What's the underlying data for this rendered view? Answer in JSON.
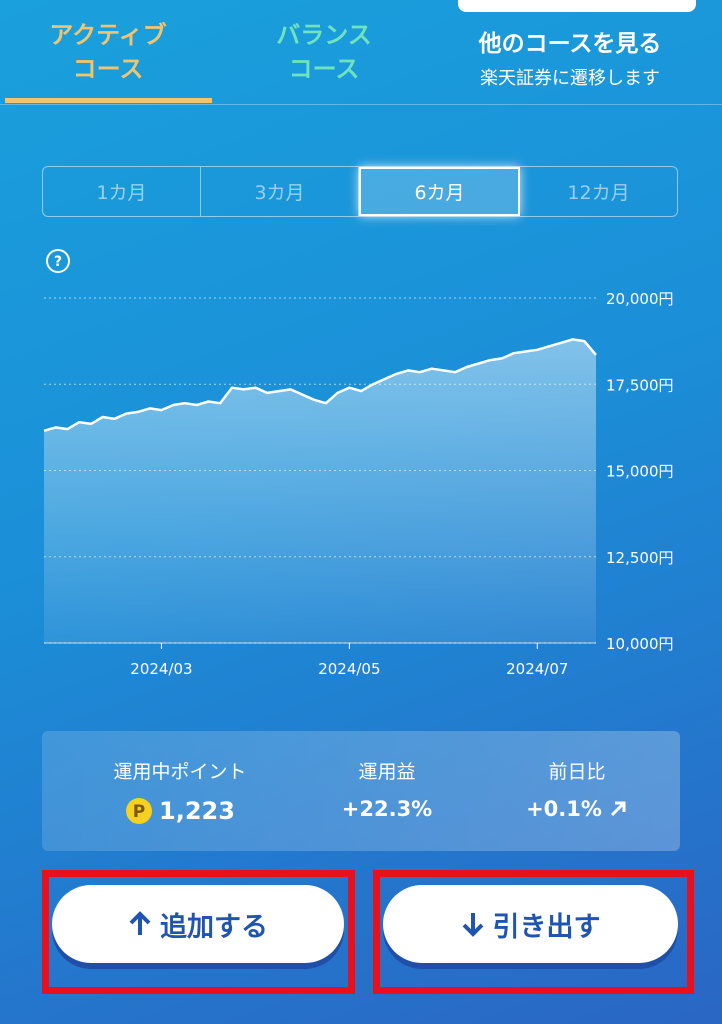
{
  "tabs": [
    {
      "lines": [
        "アクティブ",
        "コース"
      ]
    },
    {
      "lines": [
        "バランス",
        "コース"
      ]
    },
    {
      "title": "他のコースを見る",
      "subtitle": "楽天証券に遷移します"
    }
  ],
  "periods": {
    "options": [
      "1カ月",
      "3カ月",
      "6カ月",
      "12カ月"
    ],
    "selected": 2
  },
  "chart_data": {
    "type": "area",
    "color": "#ffffff",
    "grid": true,
    "categories": [
      null,
      null,
      null,
      null,
      null,
      null,
      null,
      null,
      null,
      null,
      "2024/03",
      null,
      null,
      null,
      null,
      null,
      null,
      null,
      null,
      null,
      null,
      null,
      null,
      null,
      null,
      null,
      "2024/05",
      null,
      null,
      null,
      null,
      null,
      null,
      null,
      null,
      null,
      null,
      null,
      null,
      null,
      null,
      null,
      "2024/07",
      null,
      null,
      null,
      null,
      null
    ],
    "values": [
      16150,
      16250,
      16200,
      16400,
      16350,
      16550,
      16500,
      16650,
      16700,
      16800,
      16750,
      16900,
      16950,
      16900,
      17000,
      16950,
      17400,
      17350,
      17400,
      17250,
      17300,
      17350,
      17200,
      17050,
      16950,
      17250,
      17400,
      17300,
      17500,
      17650,
      17800,
      17900,
      17850,
      17950,
      17900,
      17850,
      18000,
      18100,
      18200,
      18250,
      18400,
      18450,
      18500,
      18600,
      18700,
      18800,
      18750,
      18350
    ],
    "ylim": [
      10000,
      20000
    ],
    "yticks": [
      {
        "value": 10000,
        "label": "10,000円"
      },
      {
        "value": 12500,
        "label": "12,500円"
      },
      {
        "value": 15000,
        "label": "15,000円"
      },
      {
        "value": 17500,
        "label": "17,500円"
      },
      {
        "value": 20000,
        "label": "20,000円"
      }
    ]
  },
  "summary": [
    {
      "label": "運用中ポイント",
      "value": "1,223"
    },
    {
      "label": "運用益",
      "value": "+22.3%"
    },
    {
      "label": "前日比",
      "value": "+0.1%"
    }
  ],
  "actions": [
    "追加する",
    "引き出す"
  ]
}
